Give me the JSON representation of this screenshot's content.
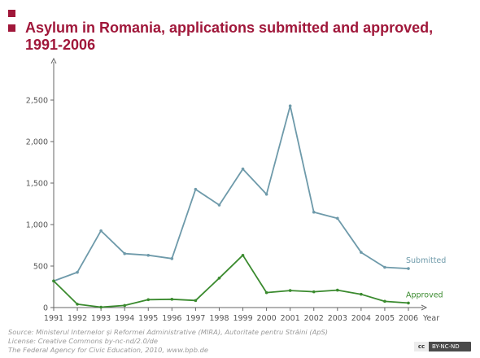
{
  "title": "Asylum in Romania, applications submitted and approved, 1991-2006",
  "colors": {
    "accent": "#a0173a",
    "submitted": "#6e9aaa",
    "approved": "#3a8a2e",
    "axis": "#666666"
  },
  "source_lines": [
    "Source: Ministerul Internelor și Reformei Administrative (MIRA), Autoritate pentru Străini (ApS)",
    "License: Creative Commons by-nc-nd/2.0/de",
    "The Federal Agency for Civic Education, 2010, www.bpb.de"
  ],
  "badge": {
    "logo": "cc",
    "terms": "BY-NC-ND"
  },
  "chart_data": {
    "type": "line",
    "title": "Asylum in Romania, applications submitted and approved, 1991-2006",
    "xlabel": "Year",
    "ylabel": "",
    "x": [
      "1991",
      "1992",
      "1993",
      "1994",
      "1995",
      "1996",
      "1997",
      "1998",
      "1999",
      "2000",
      "2001",
      "2002",
      "2003",
      "2004",
      "2005",
      "2006"
    ],
    "ylim": [
      0,
      2750
    ],
    "yticks": [
      0,
      500,
      1000,
      1500,
      2000,
      2500
    ],
    "ytick_labels": [
      "0",
      "500",
      "1,000",
      "1,500",
      "2,000",
      "2,500"
    ],
    "grid": false,
    "series": [
      {
        "name": "Submitted",
        "color": "#6e9aaa",
        "values": [
          320,
          425,
          925,
          650,
          630,
          590,
          1425,
          1235,
          1670,
          1365,
          2430,
          1150,
          1075,
          665,
          485,
          470
        ]
      },
      {
        "name": "Approved",
        "color": "#3a8a2e",
        "values": [
          320,
          40,
          5,
          25,
          95,
          100,
          85,
          355,
          630,
          180,
          205,
          190,
          210,
          160,
          75,
          55
        ]
      }
    ]
  }
}
